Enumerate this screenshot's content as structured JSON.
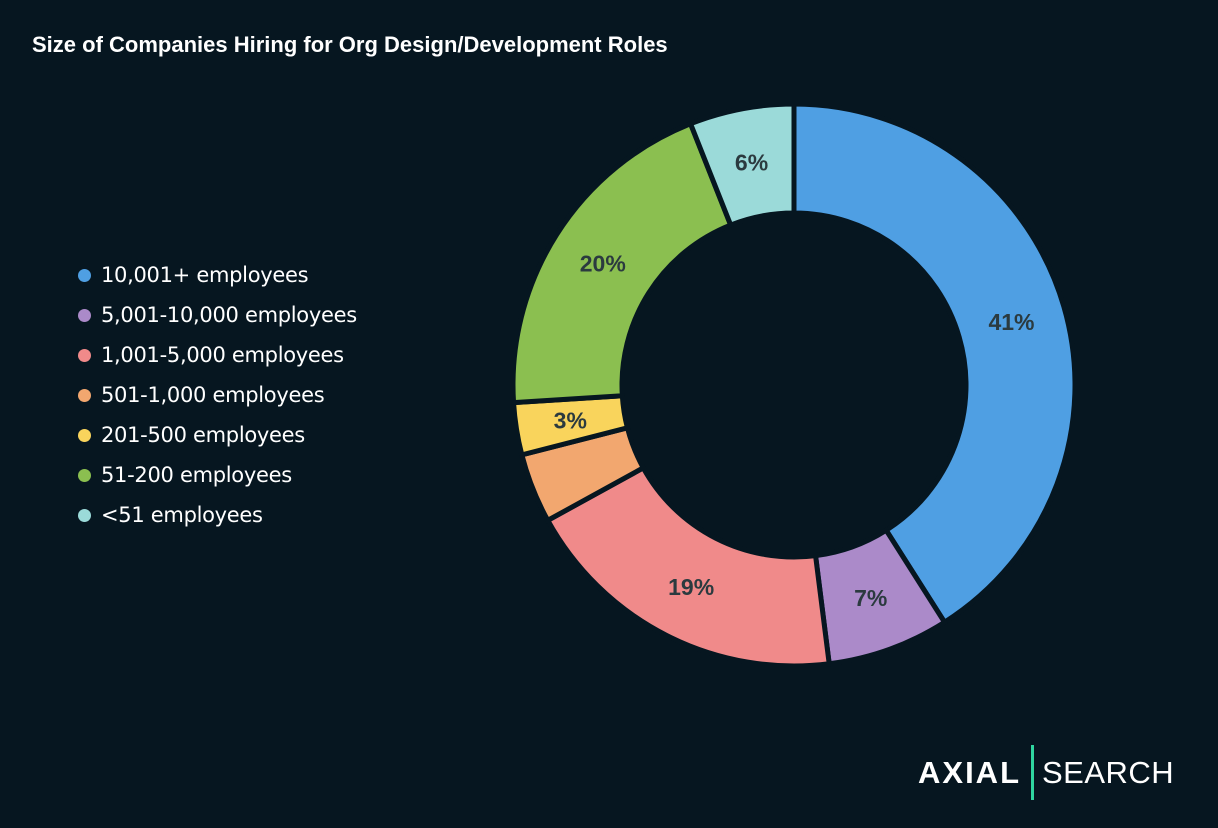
{
  "chart_data": {
    "type": "pie",
    "donut": true,
    "title": "Size of Companies Hiring for Org Design/Development Roles",
    "legend_position": "left",
    "slices": [
      {
        "label": "10,001+ employees",
        "value": 41,
        "data_label": "41%",
        "color": "#4f9fe3"
      },
      {
        "label": "5,001-10,000 employees",
        "value": 7,
        "data_label": "7%",
        "color": "#ab8ac9"
      },
      {
        "label": "1,001-5,000 employees",
        "value": 19,
        "data_label": "19%",
        "color": "#f08a8a"
      },
      {
        "label": "501-1,000 employees",
        "value": 4,
        "data_label": "",
        "color": "#f2a76f"
      },
      {
        "label": "201-500 employees",
        "value": 3,
        "data_label": "3%",
        "color": "#f9d45c"
      },
      {
        "label": "51-200 employees",
        "value": 20,
        "data_label": "20%",
        "color": "#8bbf50"
      },
      {
        "label": "<51 employees",
        "value": 6,
        "data_label": "6%",
        "color": "#9bdad9"
      }
    ]
  },
  "logo": {
    "left": "AXIAL",
    "right": "SEARCH",
    "accent": "#2fd6a0"
  },
  "background": "#061620"
}
